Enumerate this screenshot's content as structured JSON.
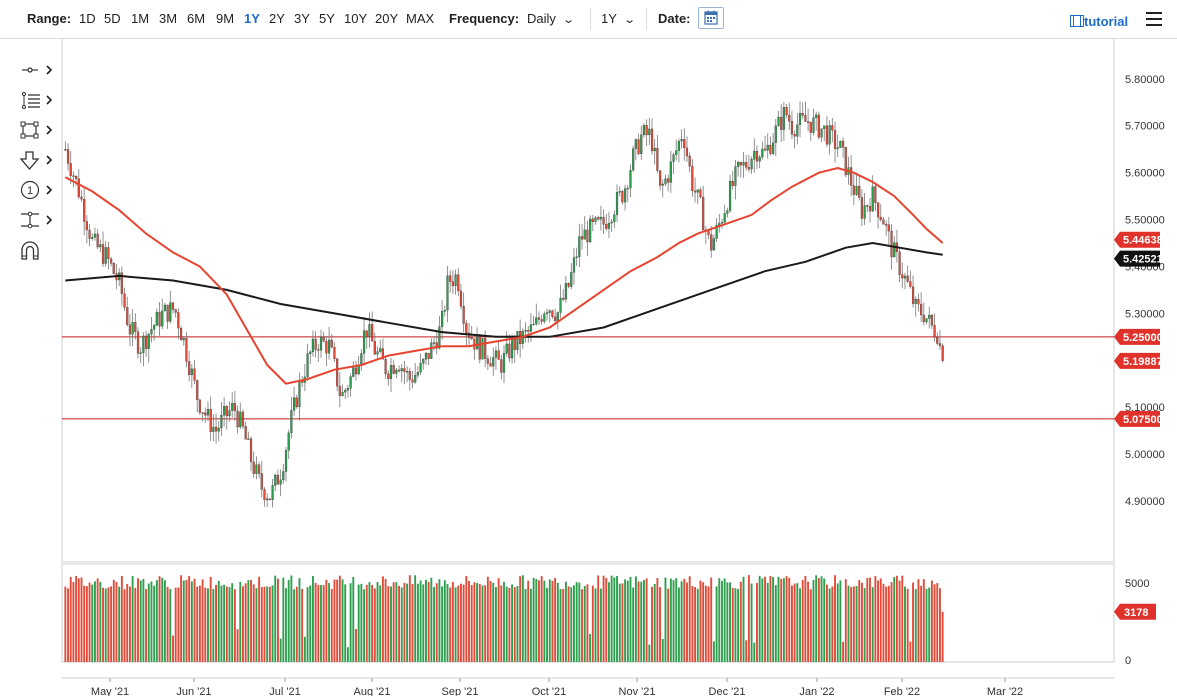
{
  "toolbar": {
    "range_label": "Range:",
    "ranges": [
      "1D",
      "5D",
      "1M",
      "3M",
      "6M",
      "9M",
      "1Y",
      "2Y",
      "3Y",
      "5Y",
      "10Y",
      "20Y",
      "MAX"
    ],
    "active_range": "1Y",
    "frequency_label": "Frequency:",
    "frequency_value": "Daily",
    "period_value": "1Y",
    "date_label": "Date:",
    "tutorial_label": "tutorial"
  },
  "drawing_tools": [
    "crosshair-icon",
    "fibonacci-icon",
    "rectangle-icon",
    "arrow-down-icon",
    "numbered-marker-icon",
    "measure-icon",
    "magnet-icon"
  ],
  "colors": {
    "up": "#2e9e4f",
    "down": "#e04b3a",
    "ma_short": "#e8432e",
    "ma_long": "#1a1a1a",
    "hline": "#c41e1e",
    "price_tag_red": "#e0312a",
    "price_tag_black": "#111111"
  },
  "chart_data": {
    "type": "candlestick",
    "frequency": "Daily",
    "x_ticks": [
      "May '21",
      "Jun '21",
      "Jul '21",
      "Aug '21",
      "Sep '21",
      "Oct '21",
      "Nov '21",
      "Dec '21",
      "Jan '22",
      "Feb '22",
      "Mar '22"
    ],
    "y_ticks": [
      "5.80000",
      "5.70000",
      "5.60000",
      "5.50000",
      "5.40000",
      "5.30000",
      "5.10000",
      "5.00000",
      "4.90000"
    ],
    "ylim": [
      4.77,
      5.87
    ],
    "last_close": 5.19887,
    "horizontal_lines": [
      5.25,
      5.075
    ],
    "price_tags": {
      "ma_short_value": "5.44638",
      "ma_long_value": "5.42521",
      "line_upper": "5.25000",
      "last_price": "5.19887",
      "line_lower": "5.07500"
    },
    "ma_short": [
      [
        0,
        5.59
      ],
      [
        10,
        5.56
      ],
      [
        20,
        5.52
      ],
      [
        30,
        5.47
      ],
      [
        40,
        5.43
      ],
      [
        50,
        5.4
      ],
      [
        60,
        5.34
      ],
      [
        68,
        5.26
      ],
      [
        75,
        5.19
      ],
      [
        82,
        5.15
      ],
      [
        90,
        5.16
      ],
      [
        100,
        5.18
      ],
      [
        110,
        5.19
      ],
      [
        120,
        5.21
      ],
      [
        130,
        5.22
      ],
      [
        140,
        5.23
      ],
      [
        150,
        5.23
      ],
      [
        160,
        5.24
      ],
      [
        170,
        5.25
      ],
      [
        180,
        5.27
      ],
      [
        190,
        5.31
      ],
      [
        200,
        5.35
      ],
      [
        210,
        5.39
      ],
      [
        220,
        5.42
      ],
      [
        228,
        5.45
      ],
      [
        235,
        5.47
      ],
      [
        245,
        5.49
      ],
      [
        255,
        5.51
      ],
      [
        262,
        5.54
      ],
      [
        270,
        5.57
      ],
      [
        280,
        5.6
      ],
      [
        287,
        5.61
      ],
      [
        293,
        5.6
      ],
      [
        300,
        5.58
      ],
      [
        308,
        5.55
      ],
      [
        315,
        5.51
      ],
      [
        320,
        5.48
      ],
      [
        326,
        5.45
      ]
    ],
    "ma_long": [
      [
        0,
        5.37
      ],
      [
        20,
        5.38
      ],
      [
        40,
        5.37
      ],
      [
        60,
        5.35
      ],
      [
        80,
        5.32
      ],
      [
        100,
        5.3
      ],
      [
        120,
        5.28
      ],
      [
        140,
        5.26
      ],
      [
        160,
        5.25
      ],
      [
        180,
        5.25
      ],
      [
        200,
        5.27
      ],
      [
        220,
        5.31
      ],
      [
        240,
        5.35
      ],
      [
        260,
        5.39
      ],
      [
        275,
        5.41
      ],
      [
        290,
        5.44
      ],
      [
        300,
        5.45
      ],
      [
        310,
        5.44
      ],
      [
        320,
        5.43
      ],
      [
        326,
        5.425
      ]
    ],
    "volume": {
      "ylim": [
        0,
        6200
      ],
      "y_ticks": [
        "5000",
        "0"
      ],
      "last_volume": "3178"
    }
  }
}
